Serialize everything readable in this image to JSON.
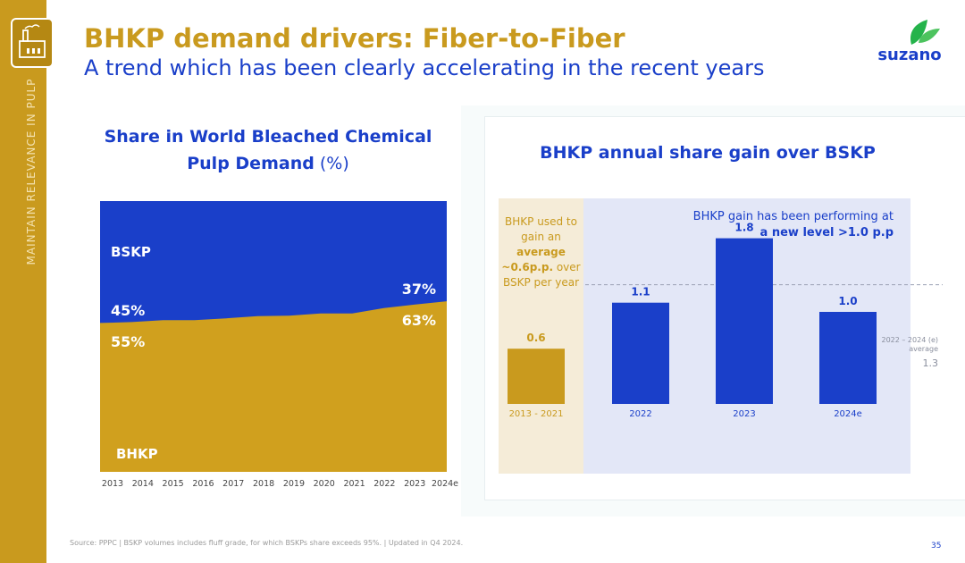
{
  "header": {
    "title": "BHKP demand drivers: Fiber-to-Fiber",
    "subtitle": "A trend which has been clearly accelerating in the recent years",
    "side_label": "MAINTAIN RELEVANCE IN PULP",
    "logo_text": "suzano"
  },
  "colors": {
    "gold": "#c99a1e",
    "blue": "#1a3fc9",
    "side": "#c99a1e"
  },
  "left_chart_title": {
    "bold": "Share in World Bleached Chemical Pulp Demand",
    "suffix": " (%)"
  },
  "right_chart_title": "BHKP annual share gain over BSKP",
  "notes": {
    "left_prefix": "BHKP used to gain an ",
    "left_bold": "average ~0.6p.p.",
    "left_suffix": " over BSKP per year",
    "right_line1": "BHKP gain has been performing at",
    "right_line2": "a new level >1.0 p.p"
  },
  "chart_data": [
    {
      "type": "area",
      "title": "Share in World Bleached Chemical Pulp Demand (%)",
      "categories": [
        "2013",
        "2014",
        "2015",
        "2016",
        "2017",
        "2018",
        "2019",
        "2020",
        "2021",
        "2022",
        "2023",
        "2024e"
      ],
      "series": [
        {
          "name": "BHKP",
          "values": [
            55,
            55.3,
            56,
            56,
            56.7,
            57.5,
            57.7,
            58.5,
            58.5,
            60.5,
            61.8,
            63
          ]
        },
        {
          "name": "BSKP",
          "values": [
            45,
            44.7,
            44,
            44,
            43.3,
            42.5,
            42.3,
            41.5,
            41.5,
            39.5,
            38.2,
            37
          ]
        }
      ],
      "labels": {
        "bskp_start": "45%",
        "bhkp_start": "55%",
        "bskp_end": "37%",
        "bhkp_end": "63%",
        "bskp_name": "BSKP",
        "bhkp_name": "BHKP"
      },
      "ylim": [
        0,
        100
      ]
    },
    {
      "type": "bar",
      "title": "BHKP annual share gain over BSKP",
      "categories": [
        "2013 - 2021",
        "2022",
        "2023",
        "2024e"
      ],
      "values": [
        0.6,
        1.1,
        1.8,
        1.0
      ],
      "value_labels": [
        "0.6",
        "1.1",
        "1.8",
        "1.0"
      ],
      "average": {
        "value": 1.3,
        "label": "1.3",
        "caption_line1": "2022 – 2024 (e)",
        "caption_line2": "average"
      },
      "ylim": [
        0,
        2
      ]
    }
  ],
  "footer": {
    "source": "Source: PPPC | BSKP volumes includes fluff grade, for which BSKPs share exceeds 95%. | Updated in Q4 2024.",
    "page": "35"
  }
}
